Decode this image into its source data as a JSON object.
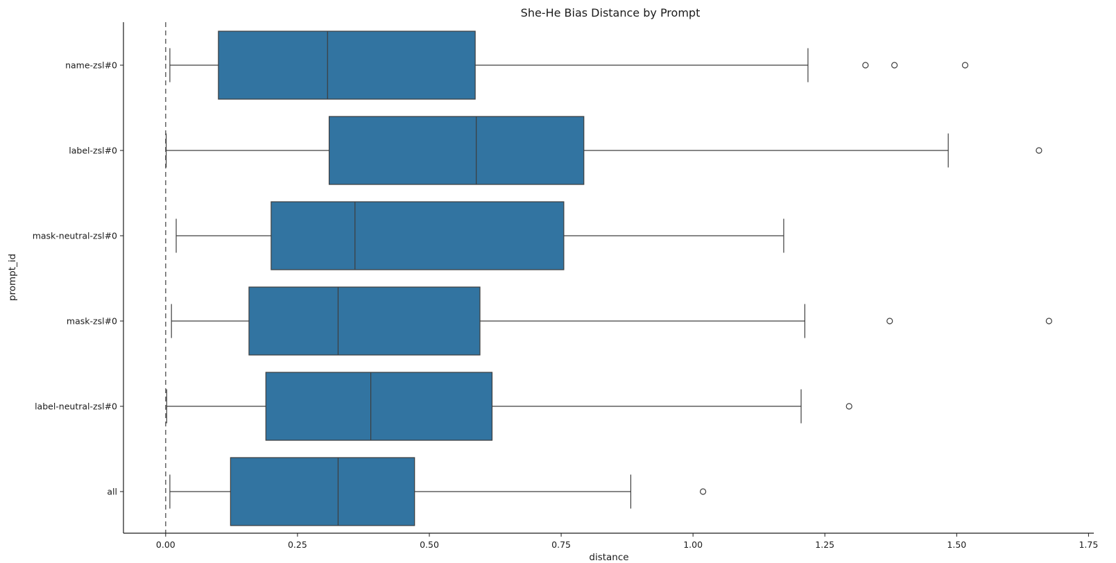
{
  "chart_data": {
    "type": "boxplot",
    "orientation": "horizontal",
    "title": "She-He Bias Distance by Prompt",
    "xlabel": "distance",
    "ylabel": "prompt_id",
    "xlim": [
      -0.08,
      1.76
    ],
    "xticks": [
      0.0,
      0.25,
      0.5,
      0.75,
      1.0,
      1.25,
      1.5,
      1.75
    ],
    "xtick_labels": [
      "0.00",
      "0.25",
      "0.50",
      "0.75",
      "1.00",
      "1.25",
      "1.50",
      "1.75"
    ],
    "reference_line": {
      "x": 0.0,
      "style": "dashed"
    },
    "box_color": "#3274a1",
    "line_color": "#3d3d3d",
    "grid": false,
    "categories": [
      "name-zsl#0",
      "label-zsl#0",
      "mask-neutral-zsl#0",
      "mask-zsl#0",
      "label-neutral-zsl#0",
      "all"
    ],
    "boxes": [
      {
        "label": "name-zsl#0",
        "whisker_low": 0.008,
        "q1": 0.1,
        "median": 0.307,
        "q3": 0.587,
        "whisker_high": 1.218,
        "outliers": [
          1.327,
          1.382,
          1.516
        ]
      },
      {
        "label": "label-zsl#0",
        "whisker_low": 0.001,
        "q1": 0.31,
        "median": 0.589,
        "q3": 0.793,
        "whisker_high": 1.484,
        "outliers": [
          1.656
        ]
      },
      {
        "label": "mask-neutral-zsl#0",
        "whisker_low": 0.02,
        "q1": 0.2,
        "median": 0.359,
        "q3": 0.755,
        "whisker_high": 1.172,
        "outliers": []
      },
      {
        "label": "mask-zsl#0",
        "whisker_low": 0.011,
        "q1": 0.158,
        "median": 0.327,
        "q3": 0.596,
        "whisker_high": 1.212,
        "outliers": [
          1.373,
          1.675
        ]
      },
      {
        "label": "label-neutral-zsl#0",
        "whisker_low": 0.002,
        "q1": 0.19,
        "median": 0.389,
        "q3": 0.619,
        "whisker_high": 1.205,
        "outliers": [
          1.296
        ]
      },
      {
        "label": "all",
        "whisker_low": 0.008,
        "q1": 0.123,
        "median": 0.327,
        "q3": 0.472,
        "whisker_high": 0.882,
        "outliers": [
          1.019
        ]
      }
    ]
  }
}
